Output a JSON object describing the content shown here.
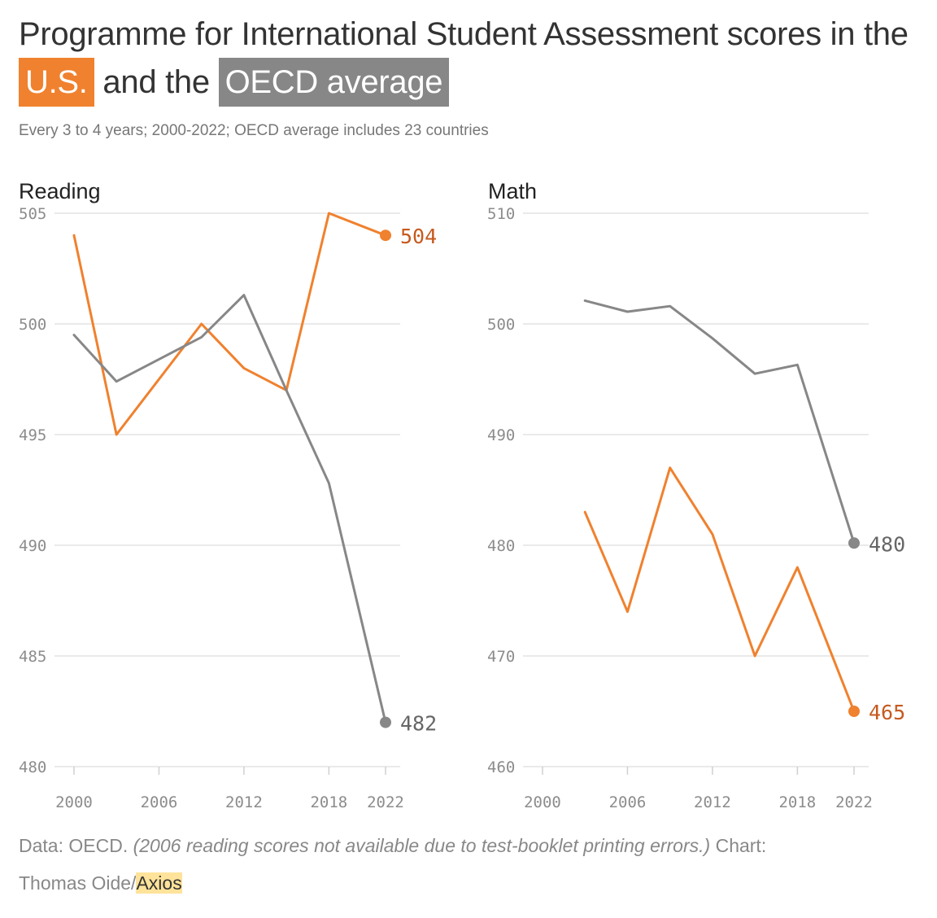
{
  "header": {
    "title_part1": "Programme for International Student Assessment scores in the",
    "title_us": "U.S.",
    "title_part2": "and the",
    "title_oecd": "OECD average",
    "subtitle": "Every 3 to 4 years; 2000-2022; OECD average includes 23 countries"
  },
  "colors": {
    "us": "#f0812e",
    "oecd": "#878787",
    "us_label": "#c65a1e",
    "oecd_label": "#666666"
  },
  "chart_data": [
    {
      "type": "line",
      "title": "Reading",
      "xlabel": "",
      "ylabel": "",
      "xlim": [
        2000,
        2022
      ],
      "ylim": [
        480,
        505
      ],
      "x_ticks": [
        "2000",
        "2006",
        "2012",
        "2018",
        "2022"
      ],
      "y_ticks": [
        "505",
        "500",
        "495",
        "490",
        "485",
        "480"
      ],
      "grid": true,
      "series": [
        {
          "name": "U.S.",
          "x": [
            2000,
            2003,
            2009,
            2012,
            2015,
            2018,
            2022
          ],
          "values": [
            504,
            495,
            500,
            498,
            497,
            505,
            504
          ],
          "end_label": "504"
        },
        {
          "name": "OECD average",
          "x": [
            2000,
            2003,
            2009,
            2012,
            2015,
            2018,
            2022
          ],
          "values": [
            499.5,
            497.4,
            499.4,
            501.3,
            497.0,
            492.8,
            482
          ],
          "end_label": "482"
        }
      ]
    },
    {
      "type": "line",
      "title": "Math",
      "xlabel": "",
      "ylabel": "",
      "xlim": [
        2000,
        2022
      ],
      "ylim": [
        460,
        510
      ],
      "x_ticks": [
        "2000",
        "2006",
        "2012",
        "2018",
        "2022"
      ],
      "y_ticks": [
        "510",
        "500",
        "490",
        "480",
        "470",
        "460"
      ],
      "grid": true,
      "series": [
        {
          "name": "U.S.",
          "x": [
            2003,
            2006,
            2009,
            2012,
            2015,
            2018,
            2022
          ],
          "values": [
            483,
            474,
            487,
            481,
            470,
            478,
            465
          ],
          "end_label": "465"
        },
        {
          "name": "OECD average",
          "x": [
            2003,
            2006,
            2009,
            2012,
            2015,
            2018,
            2022
          ],
          "values": [
            502.1,
            501.1,
            501.6,
            498.7,
            495.5,
            496.3,
            480.2
          ],
          "end_label": "480"
        }
      ]
    }
  ],
  "footer": {
    "data_label": "Data: OECD.",
    "note": "(2006 reading scores not available due to test-booklet printing errors.)",
    "chart_label": "Chart:",
    "author": "Thomas Oide/",
    "brand": "Axios"
  }
}
